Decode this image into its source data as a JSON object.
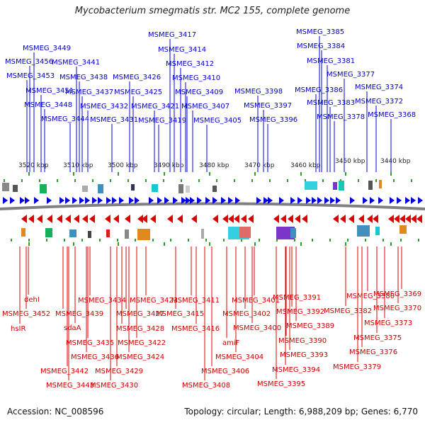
{
  "title": "Mycobacterium smegmatis str. MC2 155, complete genome",
  "accession": "Accession: NC_008596",
  "topology": "Topology: circular; Length: 6,988,209 bp; Genes: 6,770",
  "colors": {
    "forward": "#0000dd",
    "reverse": "#dd0000",
    "backbone": "#808080",
    "tick": "#2a9d2a"
  },
  "scale": {
    "unit": "kbp",
    "ticks": [
      {
        "label": "3520 kbp"
      },
      {
        "label": "3510 kbp"
      },
      {
        "label": "3500 kbp"
      },
      {
        "label": "3490 kbp"
      },
      {
        "label": "3480 kbp"
      },
      {
        "label": "3470 kbp"
      },
      {
        "label": "3460 kbp"
      },
      {
        "label": "3450 kbp"
      },
      {
        "label": "3440 kbp"
      }
    ]
  },
  "forward_genes": [
    "MSMEG_3449",
    "MSMEG_3456",
    "MSMEG_3453",
    "MSMEG_3451",
    "MSMEG_3448",
    "MSMEG_3441",
    "MSMEG_3438",
    "MSMEG_3437",
    "MSMEG_3444",
    "MSMEG_3432",
    "MSMEG_3431",
    "MSMEG_3426",
    "MSMEG_3425",
    "MSMEG_3421",
    "MSMEG_3419",
    "MSMEG_3417",
    "MSMEG_3414",
    "MSMEG_3412",
    "MSMEG_3410",
    "MSMEG_3409",
    "MSMEG_3407",
    "MSMEG_3405",
    "MSMEG_3398",
    "MSMEG_3397",
    "MSMEG_3396",
    "MSMEG_3385",
    "MSMEG_3384",
    "MSMEG_3381",
    "MSMEG_3386",
    "MSMEG_3383",
    "MSMEG_3378",
    "MSMEG_3377",
    "MSMEG_3374",
    "MSMEG_3372",
    "MSMEG_3368"
  ],
  "reverse_genes": [
    "dehI",
    "MSMEG_3452",
    "hsIR",
    "MSMEG_3434",
    "MSMEG_3439",
    "sdaA",
    "MSMEG_3435",
    "MSMEG_3436",
    "MSMEG_3442",
    "MSMEG_3443",
    "MSMEG_3423",
    "MSMEG_3427",
    "MSMEG_3428",
    "MSMEG_3422",
    "MSMEG_3424",
    "MSMEG_3429",
    "MSMEG_3430",
    "MSMEG_3411",
    "MSMEG_3415",
    "MSMEG_3416",
    "MSMEG_3404",
    "MSMEG_3406",
    "MSMEG_3408",
    "MSMEG_3401",
    "MSMEG_3402",
    "MSMEG_3400",
    "amiF",
    "MSMEG_3391",
    "MSMEG_3392",
    "MSMEG_3389",
    "MSMEG_3390",
    "MSMEG_3393",
    "MSMEG_3394",
    "MSMEG_3395",
    "MSMEG_3380",
    "MSMEG_3382",
    "MSMEG_3369",
    "MSMEG_3370",
    "MSMEG_3373",
    "MSMEG_3375",
    "MSMEG_3376",
    "MSMEG_3379"
  ]
}
